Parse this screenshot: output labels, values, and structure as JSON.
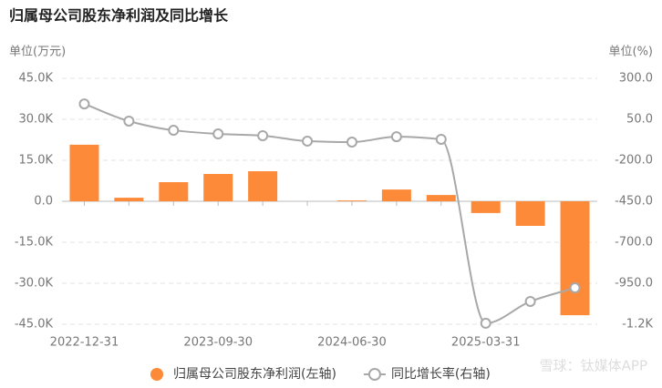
{
  "chart_data": {
    "type": "bar-line",
    "title": "归属母公司股东净利润及同比增长",
    "y_label": "单位(万元)",
    "y2_label": "单位(%)",
    "categories": [
      "2022-12-31",
      null,
      null,
      "2023-09-30",
      null,
      null,
      "2024-06-30",
      null,
      null,
      "2025-03-31",
      null,
      null
    ],
    "series": [
      {
        "name": "归属母公司股东净利润(左轴)",
        "type": "bar",
        "color": "#fd8a38",
        "values": [
          20700,
          1300,
          7000,
          10000,
          11000,
          null,
          300,
          4300,
          2300,
          -4300,
          -9000,
          -41700
        ]
      },
      {
        "name": "同比增长率(右轴)",
        "type": "line",
        "axis": "y2",
        "color": "#a8a8a8",
        "values": [
          144,
          39,
          -17,
          -39,
          -50,
          -83,
          -89,
          -56,
          -72,
          -1194,
          -1061,
          -978
        ]
      }
    ],
    "ylim": [
      -45000,
      45000
    ],
    "yticks": [
      {
        "value": -45000,
        "label": "-45.0K"
      },
      {
        "value": -30000,
        "label": "-30.0K"
      },
      {
        "value": -15000,
        "label": "-15.0K"
      },
      {
        "value": 0,
        "label": "0.0"
      },
      {
        "value": 15000,
        "label": "15.0K"
      },
      {
        "value": 30000,
        "label": "30.0K"
      },
      {
        "value": 45000,
        "label": "45.0K"
      }
    ],
    "y2lim": [
      -1200,
      300
    ],
    "y2ticks": [
      {
        "value": -1200,
        "label": "-1.2K"
      },
      {
        "value": -950,
        "label": "-950.0"
      },
      {
        "value": -700,
        "label": "-700.0"
      },
      {
        "value": -450,
        "label": "-450.0"
      },
      {
        "value": -200,
        "label": "-200.0"
      },
      {
        "value": 50,
        "label": "50.0"
      },
      {
        "value": 300,
        "label": "300.0"
      }
    ],
    "grid": true,
    "watermark": "雪球：钛媒体APP"
  }
}
